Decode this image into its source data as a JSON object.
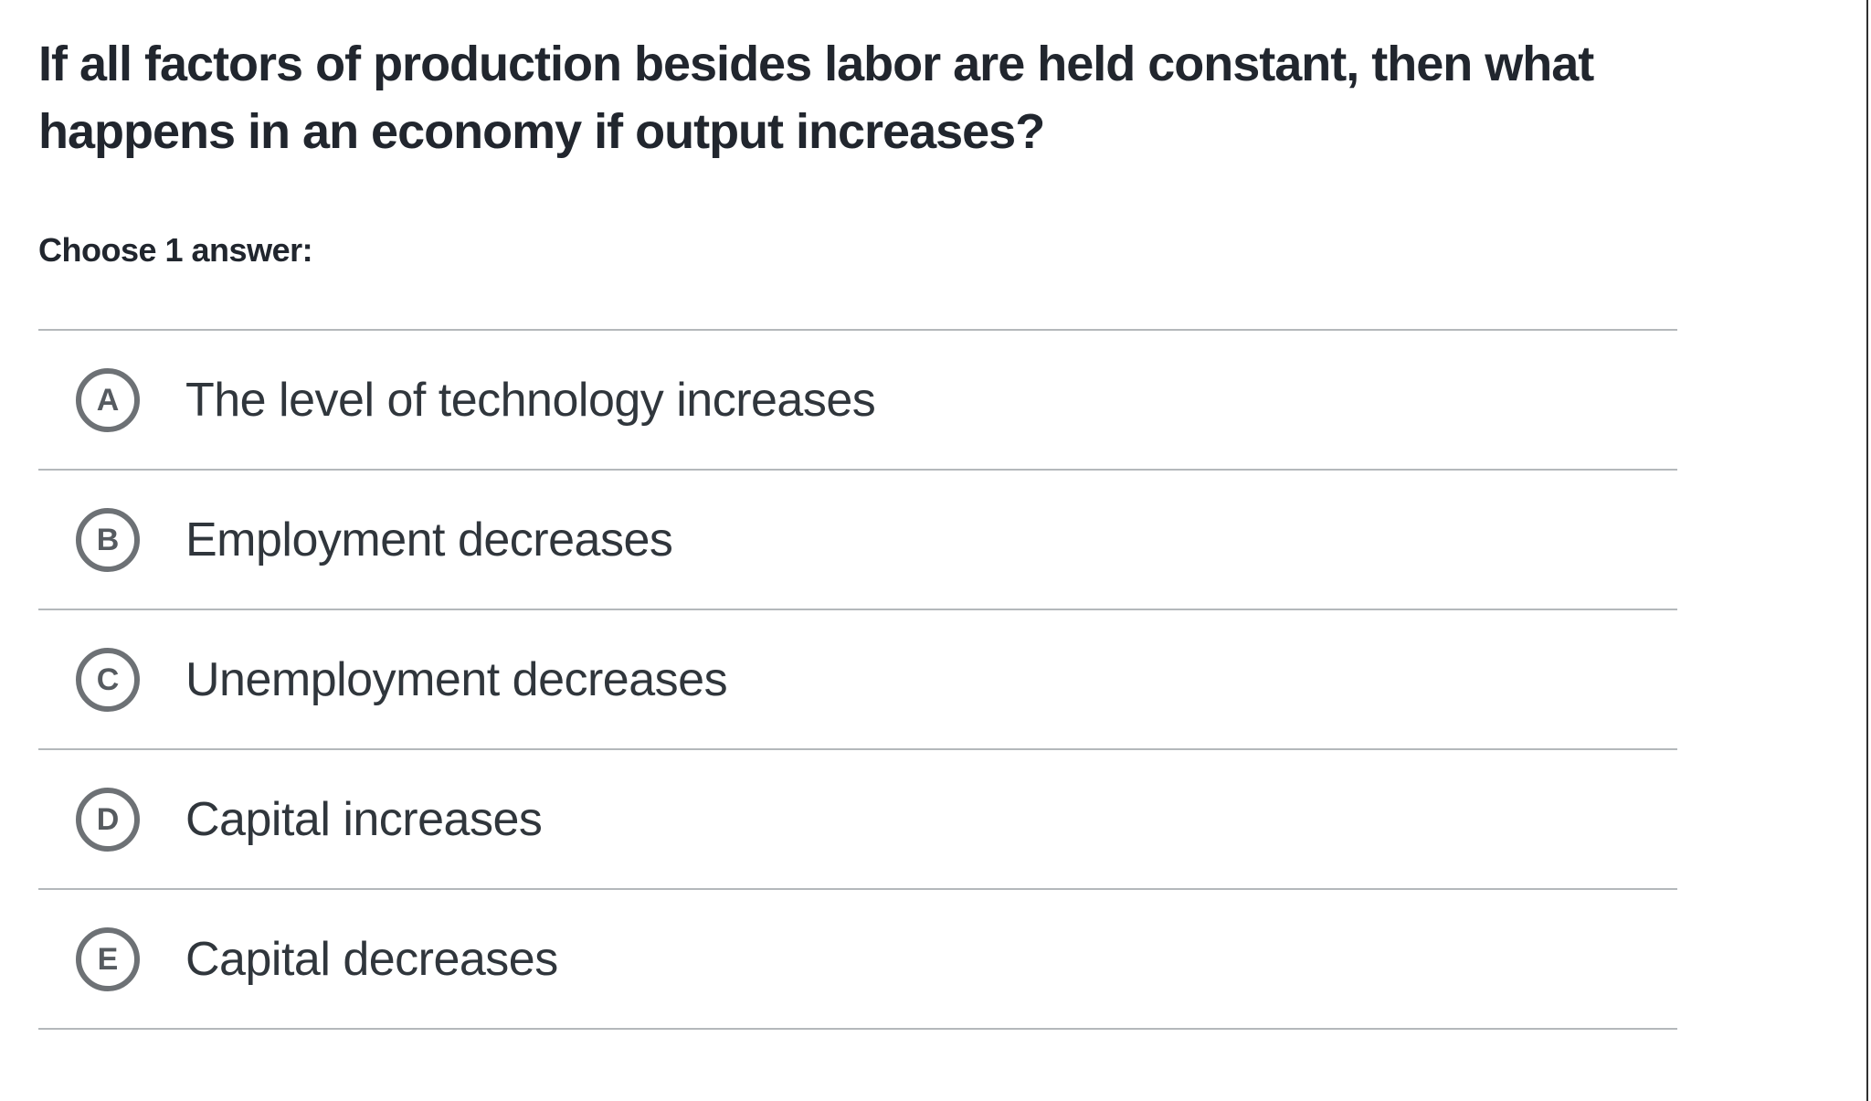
{
  "question": {
    "line1": "If all factors of production besides labor are held constant, then what",
    "line2": "happens in an economy if output increases?"
  },
  "prompt": "Choose 1 answer:",
  "options": [
    {
      "letter": "A",
      "label": "The level of technology increases"
    },
    {
      "letter": "B",
      "label": "Employment decreases"
    },
    {
      "letter": "C",
      "label": "Unemployment decreases"
    },
    {
      "letter": "D",
      "label": "Capital increases"
    },
    {
      "letter": "E",
      "label": "Capital decreases"
    }
  ],
  "colors": {
    "divider": "#b4b8bb",
    "radio_ring": "#6d7175",
    "radio_letter": "#565b60",
    "question_text": "#21262e",
    "option_text": "#30363c",
    "right_edge": "#2e2e2e"
  }
}
